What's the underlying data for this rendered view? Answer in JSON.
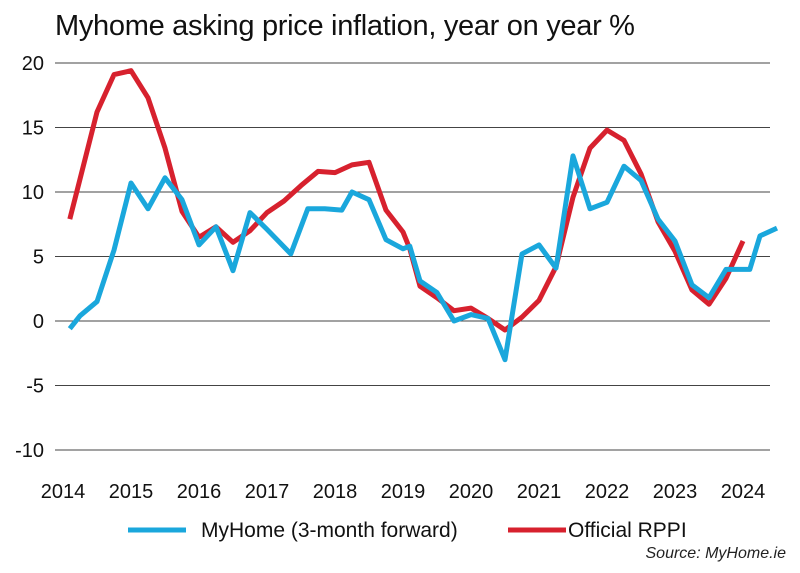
{
  "chart_data": {
    "type": "line",
    "title": "Myhome asking price inflation, year on year %",
    "xlabel": "",
    "ylabel": "",
    "ylim": [
      -10,
      20
    ],
    "xlim": [
      2014,
      2024.5
    ],
    "yticks": [
      "20",
      "15",
      "10",
      "5",
      "0",
      "-5",
      "-10"
    ],
    "xticks": [
      "2014",
      "2015",
      "2016",
      "2017",
      "2018",
      "2019",
      "2020",
      "2021",
      "2022",
      "2023",
      "2024"
    ],
    "grid": true,
    "legend_position": "bottom",
    "source": "Source: MyHome.ie",
    "series": [
      {
        "name": "MyHome (3-month forward)",
        "color": "#1aa7dc",
        "points": [
          [
            2014.1,
            -0.6
          ],
          [
            2014.25,
            0.4
          ],
          [
            2014.5,
            1.5
          ],
          [
            2014.75,
            5.5
          ],
          [
            2015.0,
            10.7
          ],
          [
            2015.25,
            8.7
          ],
          [
            2015.5,
            11.1
          ],
          [
            2015.75,
            9.4
          ],
          [
            2016.0,
            5.9
          ],
          [
            2016.25,
            7.3
          ],
          [
            2016.5,
            3.9
          ],
          [
            2016.75,
            8.4
          ],
          [
            2017.0,
            7.1
          ],
          [
            2017.35,
            5.2
          ],
          [
            2017.6,
            8.7
          ],
          [
            2017.85,
            8.7
          ],
          [
            2018.1,
            8.6
          ],
          [
            2018.25,
            10.0
          ],
          [
            2018.5,
            9.4
          ],
          [
            2018.75,
            6.3
          ],
          [
            2019.0,
            5.6
          ],
          [
            2019.1,
            5.8
          ],
          [
            2019.25,
            3.1
          ],
          [
            2019.5,
            2.2
          ],
          [
            2019.75,
            0.0
          ],
          [
            2020.0,
            0.5
          ],
          [
            2020.25,
            0.2
          ],
          [
            2020.5,
            -3.0
          ],
          [
            2020.75,
            5.2
          ],
          [
            2021.0,
            5.9
          ],
          [
            2021.25,
            4.1
          ],
          [
            2021.5,
            12.8
          ],
          [
            2021.75,
            8.7
          ],
          [
            2022.0,
            9.2
          ],
          [
            2022.25,
            12.0
          ],
          [
            2022.5,
            10.9
          ],
          [
            2022.75,
            7.9
          ],
          [
            2023.0,
            6.2
          ],
          [
            2023.25,
            2.8
          ],
          [
            2023.5,
            1.8
          ],
          [
            2023.75,
            4.0
          ],
          [
            2024.1,
            4.0
          ],
          [
            2024.25,
            6.6
          ],
          [
            2024.5,
            7.2
          ]
        ]
      },
      {
        "name": "Official RPPI",
        "color": "#d7212e",
        "points": [
          [
            2014.1,
            7.9
          ],
          [
            2014.25,
            11.0
          ],
          [
            2014.5,
            16.2
          ],
          [
            2014.75,
            19.1
          ],
          [
            2015.0,
            19.4
          ],
          [
            2015.25,
            17.3
          ],
          [
            2015.5,
            13.4
          ],
          [
            2015.75,
            8.5
          ],
          [
            2016.0,
            6.5
          ],
          [
            2016.25,
            7.3
          ],
          [
            2016.5,
            6.1
          ],
          [
            2016.75,
            7.0
          ],
          [
            2017.0,
            8.4
          ],
          [
            2017.25,
            9.3
          ],
          [
            2017.5,
            10.5
          ],
          [
            2017.75,
            11.6
          ],
          [
            2018.0,
            11.5
          ],
          [
            2018.25,
            12.1
          ],
          [
            2018.5,
            12.3
          ],
          [
            2018.75,
            8.6
          ],
          [
            2019.0,
            6.9
          ],
          [
            2019.1,
            5.6
          ],
          [
            2019.25,
            2.7
          ],
          [
            2019.5,
            1.8
          ],
          [
            2019.75,
            0.8
          ],
          [
            2020.0,
            1.0
          ],
          [
            2020.25,
            0.2
          ],
          [
            2020.5,
            -0.7
          ],
          [
            2020.75,
            0.3
          ],
          [
            2021.0,
            1.6
          ],
          [
            2021.25,
            4.2
          ],
          [
            2021.5,
            9.6
          ],
          [
            2021.75,
            13.4
          ],
          [
            2022.0,
            14.8
          ],
          [
            2022.25,
            14.0
          ],
          [
            2022.5,
            11.4
          ],
          [
            2022.75,
            7.7
          ],
          [
            2023.0,
            5.4
          ],
          [
            2023.25,
            2.4
          ],
          [
            2023.5,
            1.3
          ],
          [
            2023.75,
            3.3
          ],
          [
            2024.0,
            6.2
          ]
        ]
      }
    ]
  }
}
